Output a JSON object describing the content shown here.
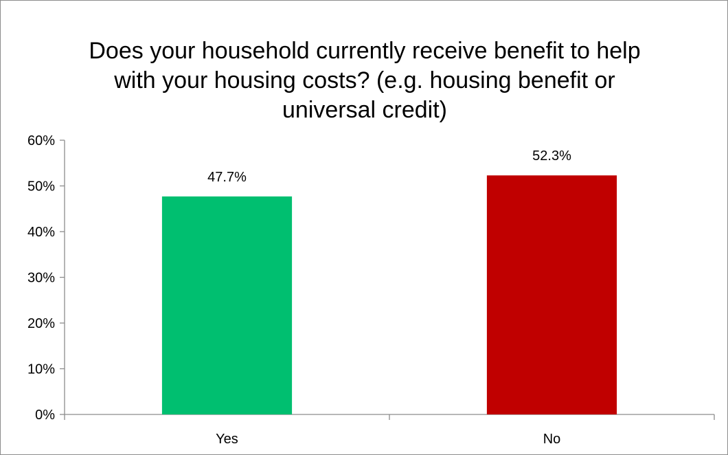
{
  "chart_data": {
    "type": "bar",
    "title": "Does your household currently receive benefit to help with your housing costs? (e.g. housing benefit or universal credit)",
    "xlabel": "",
    "ylabel": "",
    "categories": [
      "Yes",
      "No"
    ],
    "values": [
      47.7,
      52.3
    ],
    "data_labels": [
      "47.7%",
      "52.3%"
    ],
    "bar_colors": [
      "#00BF70",
      "#C00000"
    ],
    "ylim": [
      0,
      60
    ],
    "yticks": [
      0,
      10,
      20,
      30,
      40,
      50,
      60
    ],
    "ytick_labels": [
      "0%",
      "10%",
      "20%",
      "30%",
      "40%",
      "50%",
      "60%"
    ],
    "grid": false,
    "legend": "none"
  }
}
